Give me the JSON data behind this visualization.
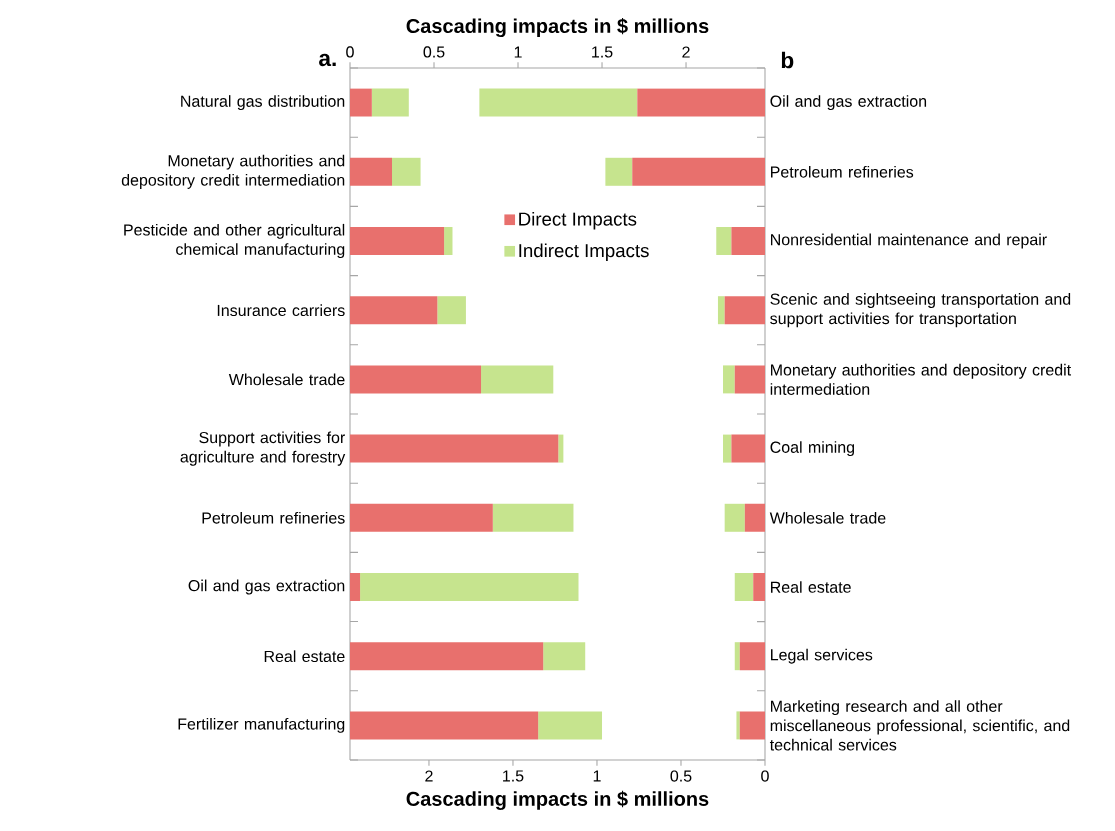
{
  "chart_data": [
    {
      "type": "bar",
      "orientation": "horizontal",
      "stacked": true,
      "title": "a.",
      "xlabel": "Cascading impacts in $ millions",
      "categories": [
        "Natural gas distribution",
        "Monetary authorities and depository credit intermediation",
        "Pesticide and other agricultural chemical manufacturing",
        "Insurance carriers",
        "Wholesale trade",
        "Support activities for agriculture and forestry",
        "Petroleum refineries",
        "Oil and gas extraction",
        "Real estate",
        "Fertilizer manufacturing"
      ],
      "series": [
        {
          "name": "Direct Impacts",
          "color": "#e8706d",
          "values": [
            0.13,
            0.25,
            0.56,
            0.52,
            0.78,
            1.24,
            0.85,
            0.06,
            1.15,
            1.12
          ]
        },
        {
          "name": "Indirect Impacts",
          "color": "#c6e48e",
          "values": [
            0.22,
            0.17,
            0.05,
            0.17,
            0.43,
            0.03,
            0.48,
            1.3,
            0.25,
            0.38
          ]
        }
      ],
      "xlim": [
        0,
        2.47
      ],
      "xticks": [
        0,
        0.5,
        1,
        1.5,
        2
      ],
      "legend": "top"
    },
    {
      "type": "bar",
      "orientation": "horizontal",
      "stacked": true,
      "title": "b",
      "xlabel": "Cascading impacts in $ millions",
      "categories": [
        "Oil and gas extraction",
        "Petroleum refineries",
        "Nonresidential maintenance and repair",
        "Scenic and sightseeing transportation and support activities for transportation",
        "Monetary authorities and depository credit intermediation",
        "Coal mining",
        "Wholesale trade",
        "Real estate",
        "Legal services",
        "Marketing research and all other miscellaneous professional, scientific, and technical services"
      ],
      "series": [
        {
          "color": "#e8706d",
          "values": [
            0.76,
            0.79,
            0.2,
            0.24,
            0.18,
            0.2,
            0.12,
            0.07,
            0.15,
            0.15
          ]
        },
        {
          "color": "#c6e48e",
          "values": [
            0.94,
            0.16,
            0.09,
            0.04,
            0.07,
            0.05,
            0.12,
            0.11,
            0.03,
            0.02
          ]
        }
      ],
      "xlim": [
        2.47,
        0
      ],
      "xticks": [
        0,
        0.5,
        1,
        1.5,
        2
      ]
    }
  ]
}
